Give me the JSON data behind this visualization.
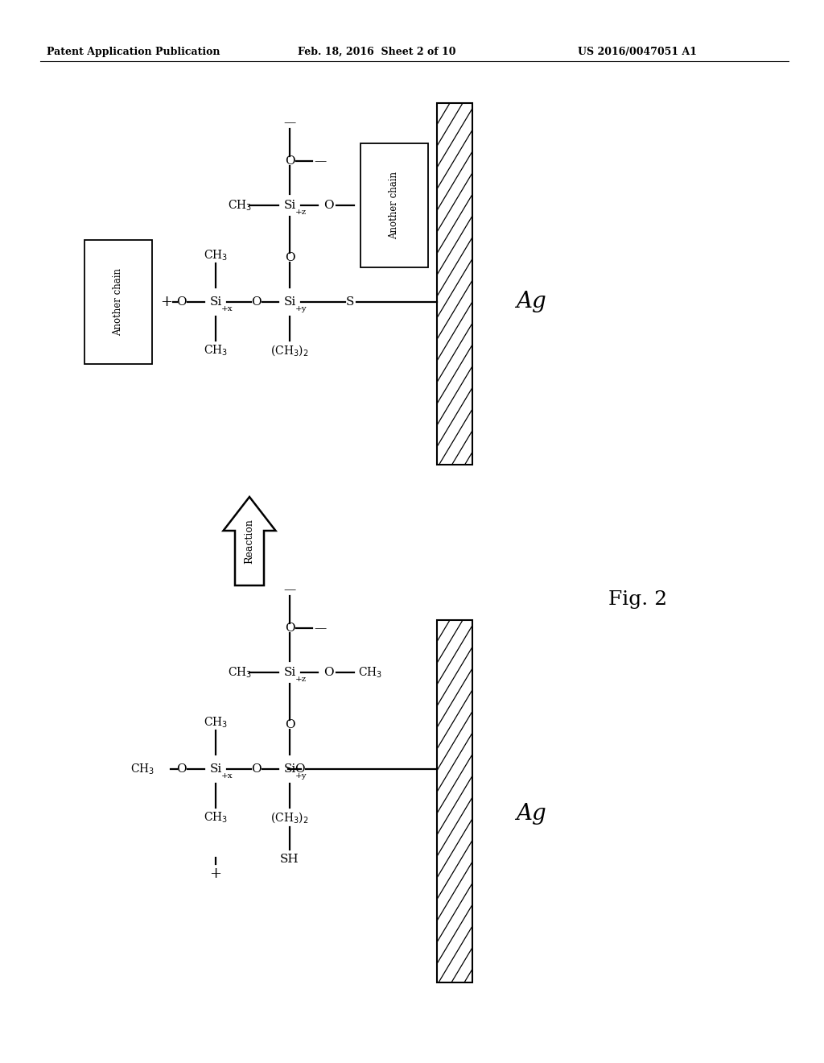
{
  "header_left": "Patent Application Publication",
  "header_mid": "Feb. 18, 2016  Sheet 2 of 10",
  "header_right": "US 2016/0047051 A1",
  "fig_label": "Fig. 2",
  "reaction_label": "Reaction",
  "ag_label": "Ag",
  "background_color": "#ffffff",
  "text_color": "#000000"
}
